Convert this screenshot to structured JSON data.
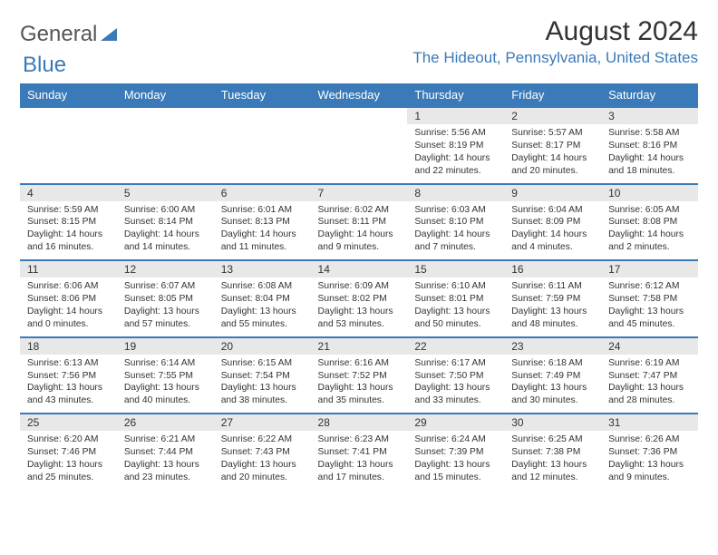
{
  "logo": {
    "text1": "General",
    "text2": "Blue"
  },
  "header": {
    "title": "August 2024",
    "location": "The Hideout, Pennsylvania, United States"
  },
  "colors": {
    "accent": "#3b7ab8",
    "header_bg": "#3b7ab8",
    "header_text": "#ffffff",
    "daynum_bg": "#e8e8e8",
    "border": "#3b7ab8",
    "text": "#333333",
    "background": "#ffffff"
  },
  "calendar": {
    "type": "table",
    "columns": [
      "Sunday",
      "Monday",
      "Tuesday",
      "Wednesday",
      "Thursday",
      "Friday",
      "Saturday"
    ],
    "weeks": [
      [
        null,
        null,
        null,
        null,
        {
          "n": "1",
          "sunrise": "5:56 AM",
          "sunset": "8:19 PM",
          "daylight": "14 hours and 22 minutes."
        },
        {
          "n": "2",
          "sunrise": "5:57 AM",
          "sunset": "8:17 PM",
          "daylight": "14 hours and 20 minutes."
        },
        {
          "n": "3",
          "sunrise": "5:58 AM",
          "sunset": "8:16 PM",
          "daylight": "14 hours and 18 minutes."
        }
      ],
      [
        {
          "n": "4",
          "sunrise": "5:59 AM",
          "sunset": "8:15 PM",
          "daylight": "14 hours and 16 minutes."
        },
        {
          "n": "5",
          "sunrise": "6:00 AM",
          "sunset": "8:14 PM",
          "daylight": "14 hours and 14 minutes."
        },
        {
          "n": "6",
          "sunrise": "6:01 AM",
          "sunset": "8:13 PM",
          "daylight": "14 hours and 11 minutes."
        },
        {
          "n": "7",
          "sunrise": "6:02 AM",
          "sunset": "8:11 PM",
          "daylight": "14 hours and 9 minutes."
        },
        {
          "n": "8",
          "sunrise": "6:03 AM",
          "sunset": "8:10 PM",
          "daylight": "14 hours and 7 minutes."
        },
        {
          "n": "9",
          "sunrise": "6:04 AM",
          "sunset": "8:09 PM",
          "daylight": "14 hours and 4 minutes."
        },
        {
          "n": "10",
          "sunrise": "6:05 AM",
          "sunset": "8:08 PM",
          "daylight": "14 hours and 2 minutes."
        }
      ],
      [
        {
          "n": "11",
          "sunrise": "6:06 AM",
          "sunset": "8:06 PM",
          "daylight": "14 hours and 0 minutes."
        },
        {
          "n": "12",
          "sunrise": "6:07 AM",
          "sunset": "8:05 PM",
          "daylight": "13 hours and 57 minutes."
        },
        {
          "n": "13",
          "sunrise": "6:08 AM",
          "sunset": "8:04 PM",
          "daylight": "13 hours and 55 minutes."
        },
        {
          "n": "14",
          "sunrise": "6:09 AM",
          "sunset": "8:02 PM",
          "daylight": "13 hours and 53 minutes."
        },
        {
          "n": "15",
          "sunrise": "6:10 AM",
          "sunset": "8:01 PM",
          "daylight": "13 hours and 50 minutes."
        },
        {
          "n": "16",
          "sunrise": "6:11 AM",
          "sunset": "7:59 PM",
          "daylight": "13 hours and 48 minutes."
        },
        {
          "n": "17",
          "sunrise": "6:12 AM",
          "sunset": "7:58 PM",
          "daylight": "13 hours and 45 minutes."
        }
      ],
      [
        {
          "n": "18",
          "sunrise": "6:13 AM",
          "sunset": "7:56 PM",
          "daylight": "13 hours and 43 minutes."
        },
        {
          "n": "19",
          "sunrise": "6:14 AM",
          "sunset": "7:55 PM",
          "daylight": "13 hours and 40 minutes."
        },
        {
          "n": "20",
          "sunrise": "6:15 AM",
          "sunset": "7:54 PM",
          "daylight": "13 hours and 38 minutes."
        },
        {
          "n": "21",
          "sunrise": "6:16 AM",
          "sunset": "7:52 PM",
          "daylight": "13 hours and 35 minutes."
        },
        {
          "n": "22",
          "sunrise": "6:17 AM",
          "sunset": "7:50 PM",
          "daylight": "13 hours and 33 minutes."
        },
        {
          "n": "23",
          "sunrise": "6:18 AM",
          "sunset": "7:49 PM",
          "daylight": "13 hours and 30 minutes."
        },
        {
          "n": "24",
          "sunrise": "6:19 AM",
          "sunset": "7:47 PM",
          "daylight": "13 hours and 28 minutes."
        }
      ],
      [
        {
          "n": "25",
          "sunrise": "6:20 AM",
          "sunset": "7:46 PM",
          "daylight": "13 hours and 25 minutes."
        },
        {
          "n": "26",
          "sunrise": "6:21 AM",
          "sunset": "7:44 PM",
          "daylight": "13 hours and 23 minutes."
        },
        {
          "n": "27",
          "sunrise": "6:22 AM",
          "sunset": "7:43 PM",
          "daylight": "13 hours and 20 minutes."
        },
        {
          "n": "28",
          "sunrise": "6:23 AM",
          "sunset": "7:41 PM",
          "daylight": "13 hours and 17 minutes."
        },
        {
          "n": "29",
          "sunrise": "6:24 AM",
          "sunset": "7:39 PM",
          "daylight": "13 hours and 15 minutes."
        },
        {
          "n": "30",
          "sunrise": "6:25 AM",
          "sunset": "7:38 PM",
          "daylight": "13 hours and 12 minutes."
        },
        {
          "n": "31",
          "sunrise": "6:26 AM",
          "sunset": "7:36 PM",
          "daylight": "13 hours and 9 minutes."
        }
      ]
    ],
    "labels": {
      "sunrise": "Sunrise:",
      "sunset": "Sunset:",
      "daylight": "Daylight:"
    },
    "fontsize_header": 13,
    "fontsize_cell": 10.3
  }
}
